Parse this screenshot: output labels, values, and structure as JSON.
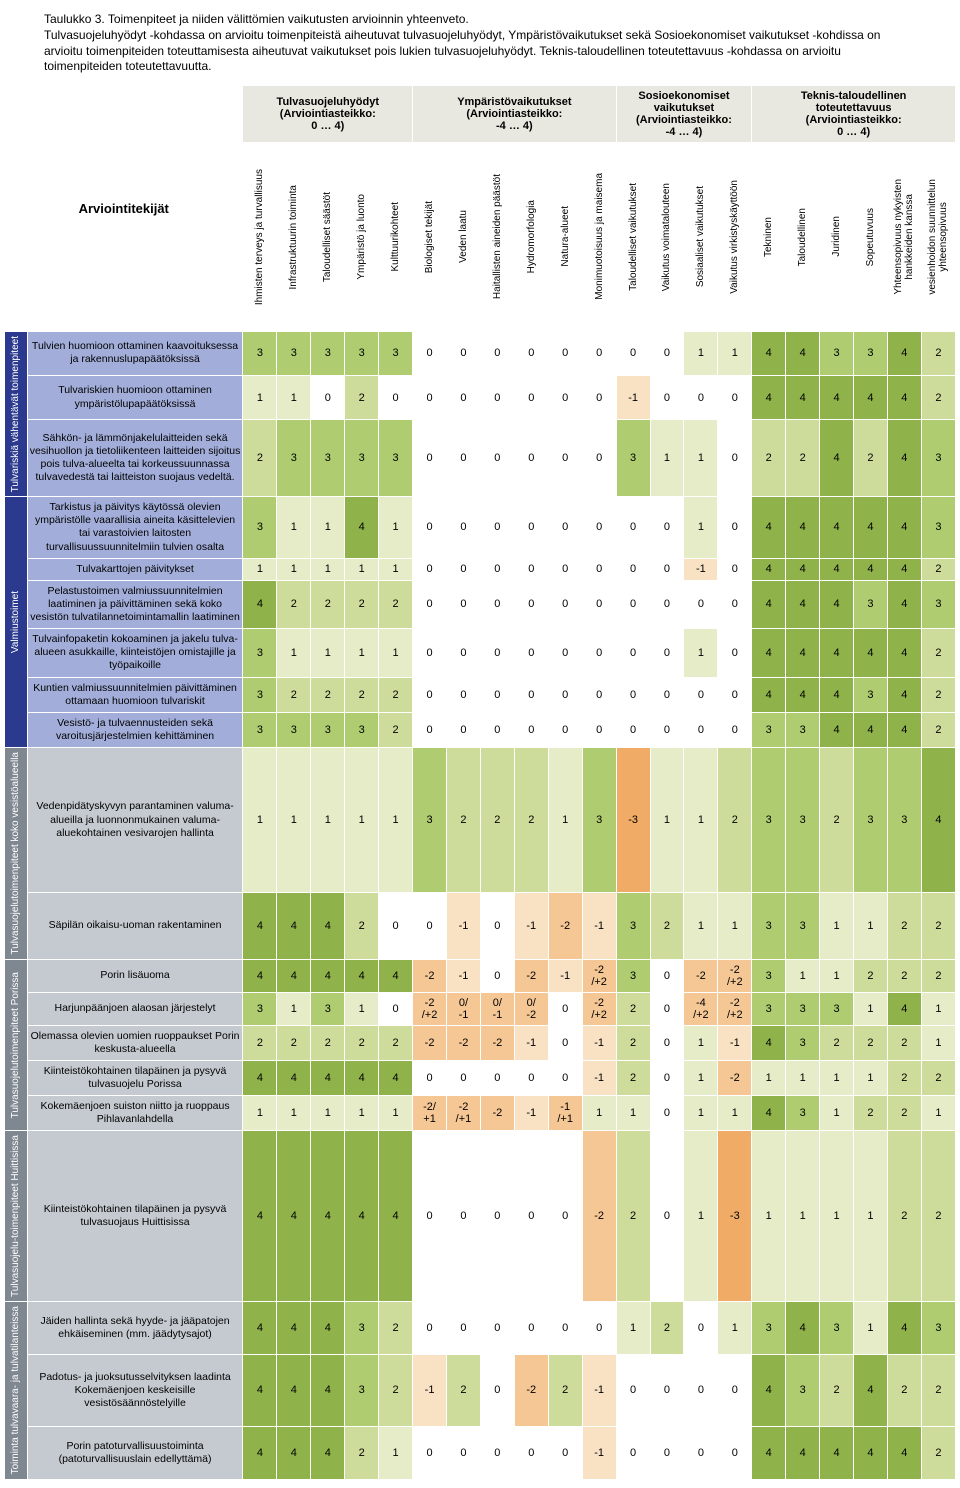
{
  "caption": "Taulukko 3. Toimenpiteet ja niiden välittömien vaikutusten arvioinnin yhteenveto.",
  "desc": "Tulvasuojeluhyödyt -kohdassa on arvioitu toimenpiteistä aiheutuvat tulvasuojeluhyödyt, Ympäristövaikutukset sekä Sosioekonomiset vaikutukset -kohdissa on arvioitu toimenpiteiden toteuttamisesta aiheutuvat vaikutukset pois lukien tulvasuojeluhyödyt. Teknis-taloudellinen toteutettavuus -kohdassa on arvioitu toimenpiteiden toteutettavuutta.",
  "groups": [
    {
      "label": "Tulvasuojeluhyödyt\n(Arviointiasteikko:\n0 … 4)",
      "span": 5
    },
    {
      "label": "Ympäristövaikutukset\n(Arviointiasteikko:\n-4 … 4)",
      "span": 6
    },
    {
      "label": "Sosioekonomiset\nvaikutukset\n(Arviointiasteikko:\n-4 … 4)",
      "span": 4
    },
    {
      "label": "Teknis-taloudellinen\ntoteutettavuus\n(Arviointiasteikko:\n0 … 4)",
      "span": 6
    }
  ],
  "arv_label": "Arviointitekijät",
  "columns": [
    "Ihmisten terveys ja turvallisuus",
    "Infrastruktuurin toiminta",
    "Taloudelliset säästöt",
    "Ympäristö ja luonto",
    "Kulttuurikohteet",
    "Biologiset tekijät",
    "Veden laatu",
    "Haitallisten aineiden päästöt",
    "Hydromorfologia",
    "Natura-alueet",
    "Monimuotoisuus ja maisema",
    "Taloudelliset vaikutukset",
    "Vaikutus voimatalouteen",
    "Sosiaaliset vaikutukset",
    "Vaikutus virkistyskäyttöön",
    "Tekninen",
    "Taloudellinen",
    "Juridinen",
    "Sopeutuvuus",
    "Yhteensopivuus nykyisten\nhankkeiden kanssa",
    "vesienhoidon suunnittelun\nyhteensopivuus"
  ],
  "palette": {
    "white": "#ffffff",
    "neutral": "#e8e8e0",
    "g1": "#e6ecc7",
    "g2": "#cddb9b",
    "g3": "#b0cc70",
    "g4": "#8fb24a",
    "g5": "#6a9a33",
    "o1": "#f9e1c4",
    "o2": "#f5c795",
    "o3": "#f0ab66",
    "o4": "#e78b3a"
  },
  "sections": [
    {
      "name": "Tulvariskiä vähentävät toimenpiteet",
      "color": "#2b3a8f",
      "text": "#fff",
      "rowbg": "#a2aed9",
      "rows": [
        {
          "label": "Tulvien huomioon ottaminen kaavoituksessa ja rakennuslupapäätöksissä",
          "cells": [
            "3",
            "3",
            "3",
            "3",
            "3",
            "0",
            "0",
            "0",
            "0",
            "0",
            "0",
            "0",
            "0",
            "1",
            "1",
            "4",
            "4",
            "3",
            "3",
            "4",
            "2"
          ]
        },
        {
          "label": "Tulvariskien huomioon ottaminen ympäristölupapäätöksissä",
          "cells": [
            "1",
            "1",
            "0",
            "2",
            "0",
            "0",
            "0",
            "0",
            "0",
            "0",
            "0",
            "-1",
            "0",
            "0",
            "0",
            "4",
            "4",
            "4",
            "4",
            "4",
            "2"
          ]
        },
        {
          "label": "Sähkön- ja lämmönjakelulaitteiden sekä vesihuollon ja tietoliikenteen laitteiden sijoitus pois tulva-alueelta tai korkeussuunnassa tulvavedestä tai laitteiston suojaus vedeltä.",
          "cells": [
            "2",
            "3",
            "3",
            "3",
            "3",
            "0",
            "0",
            "0",
            "0",
            "0",
            "0",
            "3",
            "1",
            "1",
            "0",
            "2",
            "2",
            "4",
            "2",
            "4",
            "3"
          ]
        }
      ]
    },
    {
      "name": "Valmiustoimet",
      "color": "#2b3a8f",
      "text": "#fff",
      "rowbg": "#a2aed9",
      "rows": [
        {
          "label": "Tarkistus ja päivitys käytössä olevien ympäristölle vaarallisia aineita käsittelevien tai varastoivien laitosten turvallisuussuunnitelmiin tulvien osalta",
          "cells": [
            "3",
            "1",
            "1",
            "4",
            "1",
            "0",
            "0",
            "0",
            "0",
            "0",
            "0",
            "0",
            "0",
            "1",
            "0",
            "4",
            "4",
            "4",
            "4",
            "4",
            "3"
          ]
        },
        {
          "label": "Tulvakarttojen päivitykset",
          "cells": [
            "1",
            "1",
            "1",
            "1",
            "1",
            "0",
            "0",
            "0",
            "0",
            "0",
            "0",
            "0",
            "0",
            "-1",
            "0",
            "4",
            "4",
            "4",
            "4",
            "4",
            "2"
          ]
        },
        {
          "label": "Pelastustoimen valmiussuunnitelmien laatiminen ja päivittäminen sekä koko vesistön tulvatilannetoimintamallin laatiminen",
          "cells": [
            "4",
            "2",
            "2",
            "2",
            "2",
            "0",
            "0",
            "0",
            "0",
            "0",
            "0",
            "0",
            "0",
            "0",
            "0",
            "4",
            "4",
            "4",
            "3",
            "4",
            "3"
          ]
        },
        {
          "label": "Tulvainfopaketin kokoaminen ja jakelu tulva-alueen asukkaille, kiinteistöjen omistajille ja työpaikoille",
          "cells": [
            "3",
            "1",
            "1",
            "1",
            "1",
            "0",
            "0",
            "0",
            "0",
            "0",
            "0",
            "0",
            "0",
            "1",
            "0",
            "4",
            "4",
            "4",
            "4",
            "4",
            "2"
          ]
        },
        {
          "label": "Kuntien valmiussuunnitelmien päivittäminen ottamaan huomioon tulvariskit",
          "cells": [
            "3",
            "2",
            "2",
            "2",
            "2",
            "0",
            "0",
            "0",
            "0",
            "0",
            "0",
            "0",
            "0",
            "0",
            "0",
            "4",
            "4",
            "4",
            "3",
            "4",
            "2"
          ]
        },
        {
          "label": "Vesistö- ja tulvaennusteiden sekä varoitusjärjestelmien kehittäminen",
          "cells": [
            "3",
            "3",
            "3",
            "3",
            "2",
            "0",
            "0",
            "0",
            "0",
            "0",
            "0",
            "0",
            "0",
            "0",
            "0",
            "3",
            "3",
            "4",
            "4",
            "4",
            "2"
          ]
        }
      ]
    },
    {
      "name": "Tulvasuojelutoimenpiteet koko vesistöalueella",
      "color": "#7f8790",
      "text": "#fff",
      "rowbg": "#c5cad0",
      "rows": [
        {
          "label": "Vedenpidätyskyvyn parantaminen valuma-alueilla ja luonnonmukainen valuma-aluekohtainen vesivarojen hallinta",
          "cells": [
            "1",
            "1",
            "1",
            "1",
            "1",
            "3",
            "2",
            "2",
            "2",
            "1",
            "3",
            "-3",
            "1",
            "1",
            "2",
            "3",
            "3",
            "2",
            "3",
            "3",
            "4"
          ]
        },
        {
          "label": "Säpilän oikaisu-uoman rakentaminen",
          "cells": [
            "4",
            "4",
            "4",
            "2",
            "0",
            "0",
            "-1",
            "0",
            "-1",
            "-2",
            "-1",
            "3",
            "2",
            "1",
            "1",
            "3",
            "3",
            "1",
            "1",
            "2",
            "2"
          ]
        }
      ]
    },
    {
      "name": "Tulvasuojelutoimenpiteet Porissa",
      "color": "#7f8790",
      "text": "#fff",
      "rowbg": "#c5cad0",
      "rows": [
        {
          "label": "Porin lisäuoma",
          "cells": [
            "4",
            "4",
            "4",
            "4",
            "4",
            "-2",
            "-1",
            "0",
            "-2",
            "-1",
            "-2\n/+2",
            "3",
            "0",
            "-2",
            "-2\n/+2",
            "3",
            "1",
            "1",
            "2",
            "2",
            "2"
          ]
        },
        {
          "label": "Harjunpäänjoen alaosan järjestelyt",
          "cells": [
            "3",
            "1",
            "3",
            "1",
            "0",
            "-2\n/+2",
            "0/\n-1",
            "0/\n-1",
            "0/\n-2",
            "0",
            "-2\n/+2",
            "2",
            "0",
            "-4\n/+2",
            "-2\n/+2",
            "3",
            "3",
            "3",
            "1",
            "4",
            "1"
          ]
        },
        {
          "label": "Olemassa olevien uomien ruoppaukset Porin keskusta-alueella",
          "cells": [
            "2",
            "2",
            "2",
            "2",
            "2",
            "-2",
            "-2",
            "-2",
            "-1",
            "0",
            "-1",
            "2",
            "0",
            "1",
            "-1",
            "4",
            "3",
            "2",
            "2",
            "2",
            "1"
          ]
        },
        {
          "label": "Kiinteistökohtainen tilapäinen ja pysyvä tulvasuojelu Porissa",
          "cells": [
            "4",
            "4",
            "4",
            "4",
            "4",
            "0",
            "0",
            "0",
            "0",
            "0",
            "-1",
            "2",
            "0",
            "1",
            "-2",
            "1",
            "1",
            "1",
            "1",
            "2",
            "2"
          ]
        },
        {
          "label": "Kokemäenjoen suiston niitto ja ruoppaus Pihlavanlahdella",
          "cells": [
            "1",
            "1",
            "1",
            "1",
            "1",
            "-2/\n+1",
            "-2\n/+1",
            "-2",
            "-1",
            "-1\n/+1",
            "1",
            "1",
            "0",
            "1",
            "1",
            "4",
            "3",
            "1",
            "2",
            "2",
            "1"
          ]
        }
      ]
    },
    {
      "name": "Tulvasuojelu-toimenpiteet Huittisissa",
      "color": "#7f8790",
      "text": "#fff",
      "rowbg": "#c5cad0",
      "rows": [
        {
          "label": "Kiinteistökohtainen tilapäinen ja pysyvä tulvasuojaus Huittisissa",
          "cells": [
            "4",
            "4",
            "4",
            "4",
            "4",
            "0",
            "0",
            "0",
            "0",
            "0",
            "-2",
            "2",
            "0",
            "1",
            "-3",
            "1",
            "1",
            "1",
            "1",
            "2",
            "2"
          ]
        }
      ]
    },
    {
      "name": "Toiminta tulvavaara- ja tulvatilanteissa",
      "color": "#7f8790",
      "text": "#fff",
      "rowbg": "#c5cad0",
      "rows": [
        {
          "label": "Jäiden hallinta sekä hyyde- ja jääpatojen ehkäiseminen (mm. jäädytysajot)",
          "cells": [
            "4",
            "4",
            "4",
            "3",
            "2",
            "0",
            "0",
            "0",
            "0",
            "0",
            "0",
            "1",
            "2",
            "0",
            "1",
            "3",
            "4",
            "3",
            "1",
            "4",
            "3"
          ]
        },
        {
          "label": "Padotus- ja juoksutusselvityksen laadinta Kokemäenjoen keskeisille vesistösäännöstelyille",
          "cells": [
            "4",
            "4",
            "4",
            "3",
            "2",
            "-1",
            "2",
            "0",
            "-2",
            "2",
            "-1",
            "0",
            "0",
            "0",
            "0",
            "4",
            "3",
            "2",
            "4",
            "2",
            "2"
          ]
        },
        {
          "label": "Porin patoturvallisuustoiminta (patoturvallisuuslain edellyttämä)",
          "cells": [
            "4",
            "4",
            "4",
            "2",
            "1",
            "0",
            "0",
            "0",
            "0",
            "0",
            "-1",
            "0",
            "0",
            "0",
            "0",
            "4",
            "4",
            "4",
            "4",
            "4",
            "2"
          ]
        }
      ]
    }
  ]
}
